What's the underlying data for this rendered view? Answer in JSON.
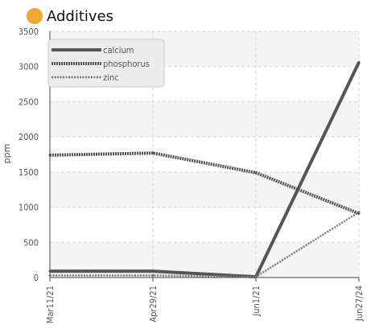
{
  "header": {
    "title": "Additives",
    "dot_color": "#F0A830"
  },
  "chart_data": {
    "type": "line",
    "title": "Additives",
    "xlabel": "",
    "ylabel": "ppm",
    "categories": [
      "Mar11/21",
      "Apr29/21",
      "Jun1/21",
      "Jun27/24"
    ],
    "ylim": [
      0,
      3500
    ],
    "yticks": [
      0,
      500,
      1000,
      1500,
      2000,
      2500,
      3000,
      3500
    ],
    "grid": true,
    "legend_position": "top-left",
    "series": [
      {
        "name": "calcium",
        "values": [
          90,
          90,
          10,
          3060
        ],
        "style": "solid",
        "color": "#555555"
      },
      {
        "name": "phosphorus",
        "values": [
          1740,
          1770,
          1490,
          910
        ],
        "style": "dotted",
        "color": "#555555"
      },
      {
        "name": "zinc",
        "values": [
          30,
          30,
          10,
          930
        ],
        "style": "light-dotted",
        "color": "#777777"
      }
    ]
  }
}
